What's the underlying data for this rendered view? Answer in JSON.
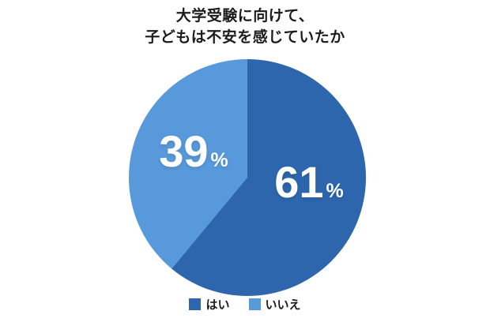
{
  "title": {
    "line1": "大学受験に向けて、",
    "line2": "子どもは不安を感じていたか"
  },
  "chart_data": {
    "type": "pie",
    "title": "大学受験に向けて、子どもは不安を感じていたか",
    "labels": [
      "はい",
      "いいえ"
    ],
    "values": [
      61,
      39
    ],
    "unit": "%",
    "colors": [
      "#2D66AD",
      "#5899DB"
    ],
    "label_text_color": "#FFFFFF",
    "background_color": "#FFFFFF",
    "legend_position": "bottom",
    "start_angle_deg": 0,
    "direction": "clockwise",
    "grid": false
  }
}
